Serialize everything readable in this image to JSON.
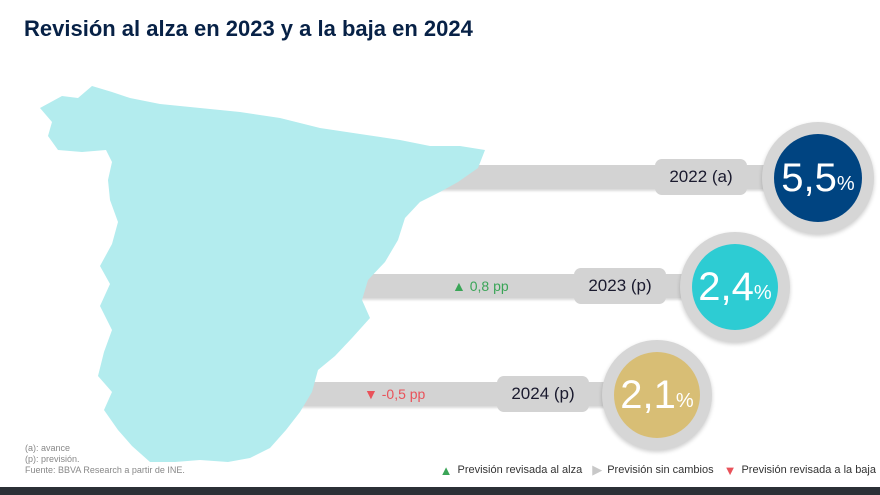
{
  "title": "Revisión al alza en 2023 y a la baja en 2024",
  "items": [
    {
      "year": "2022 (a)",
      "value": "5,5",
      "unit": "%",
      "color": "#004481",
      "delta": "",
      "direction": "none"
    },
    {
      "year": "2023 (p)",
      "value": "2,4",
      "unit": "%",
      "color": "#2dccd3",
      "delta": "0,8 pp",
      "direction": "up"
    },
    {
      "year": "2024 (p)",
      "value": "2,1",
      "unit": "%",
      "color": "#d8be75",
      "delta": "-0,5 pp",
      "direction": "down"
    }
  ],
  "notes": [
    "(a): avance",
    "(p): previsión.",
    "Fuente: BBVA Research a partir de INE."
  ],
  "legend": [
    {
      "label": "Previsión revisada al alza",
      "icon": "triangle-up-icon",
      "color": "#3aa557"
    },
    {
      "label": "Previsión sin cambios",
      "icon": "triangle-right-icon",
      "color": "#c8c8c8"
    },
    {
      "label": "Previsión revisada a la baja",
      "icon": "triangle-down-icon",
      "color": "#e9525a"
    }
  ],
  "colors": {
    "map": "#b3ecee",
    "up": "#3aa557",
    "down": "#e9525a",
    "title": "#072146"
  }
}
